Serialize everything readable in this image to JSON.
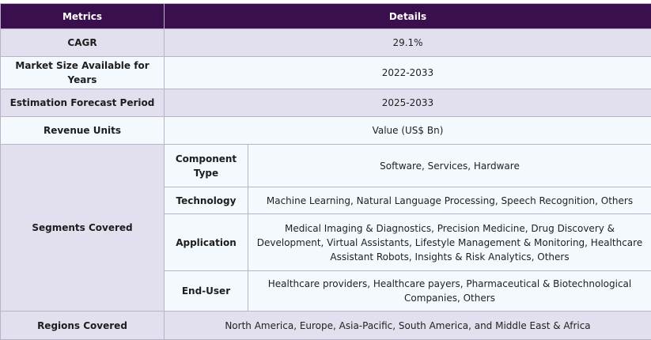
{
  "header": {
    "metrics": "Metrics",
    "details": "Details"
  },
  "rows": [
    {
      "metric": "CAGR",
      "detail": "29.1%"
    },
    {
      "metric": "Market Size Available for Years",
      "detail": "2022-2033"
    },
    {
      "metric": "Estimation Forecast Period",
      "detail": "2025-2033"
    },
    {
      "metric": "Revenue Units",
      "detail": "Value (US$ Bn)"
    }
  ],
  "segments": {
    "label": "Segments Covered",
    "items": [
      {
        "name": "Component Type",
        "value": "Software, Services, Hardware"
      },
      {
        "name": "Technology",
        "value": "Machine Learning, Natural Language Processing, Speech Recognition, Others"
      },
      {
        "name": "Application",
        "value": "Medical Imaging & Diagnostics, Precision Medicine, Drug Discovery & Development, Virtual Assistants, Lifestyle Management & Monitoring, Healthcare Assistant Robots, Insights & Risk Analytics, Others"
      },
      {
        "name": "End-User",
        "value": "Healthcare providers, Healthcare payers, Pharmaceutical & Biotechnological Companies, Others"
      }
    ]
  },
  "regions": {
    "label": "Regions Covered",
    "value": "North America, Europe, Asia-Pacific, South America, and Middle East & Africa"
  }
}
